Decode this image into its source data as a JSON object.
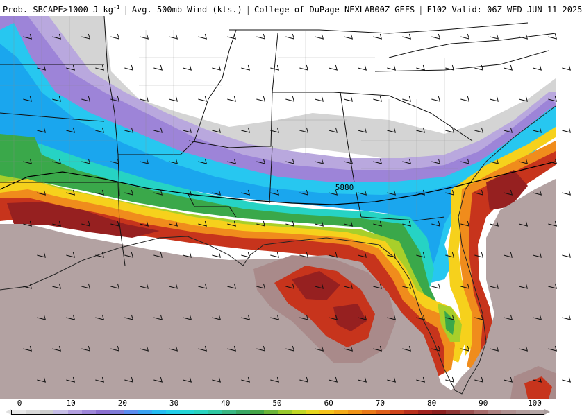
{
  "header": {
    "field_label": "Prob. SBCAPE>1000 J kg",
    "field_unit_sup": "-1",
    "wind_label": "Avg. 500mb Wind (kts.)",
    "source_label": "College of DuPage NEXLAB00Z GEFS",
    "valid_label": "F102 Valid: 06Z WED JUN 11 2025"
  },
  "map": {
    "contour_label": "5880",
    "colors": {
      "land_white": "#ffffff",
      "gray": "#d4d4d4",
      "lavender": "#b9a8de",
      "purple": "#9d84d8",
      "cyan": "#27c7f0",
      "blue": "#1aa6ee",
      "teal": "#26d3c4",
      "green": "#3aa84a",
      "yellow_green": "#a8cf2a",
      "yellow": "#f6d11c",
      "orange": "#f08c1c",
      "red": "#c7341c",
      "dark_red": "#962020",
      "mauve": "#a98a8a",
      "gulf": "#b3a2a2"
    }
  },
  "legend": {
    "labels": [
      "0",
      "10",
      "20",
      "30",
      "40",
      "50",
      "60",
      "70",
      "80",
      "90",
      "100"
    ],
    "colors": [
      "#e8e8e8",
      "#d9d9d9",
      "#cccccc",
      "#c6bde6",
      "#b39fe0",
      "#9e86d9",
      "#8b6fd0",
      "#7f7bd8",
      "#5c8cf0",
      "#3ba3f2",
      "#25bdf3",
      "#22cfea",
      "#24d6d6",
      "#2ad4c0",
      "#2fc9a2",
      "#3ab883",
      "#3aa864",
      "#44a547",
      "#6cb53a",
      "#98c92c",
      "#c1d826",
      "#e6d71f",
      "#f5c41c",
      "#f4ac1a",
      "#f09418",
      "#ea7a18",
      "#df5f1a",
      "#cf451c",
      "#b8301d",
      "#a0221f",
      "#8c1f1f",
      "#8e3434",
      "#9a5050",
      "#a66a6a",
      "#ad8080",
      "#b09090",
      "#b29c9c",
      "#b4a6a6"
    ]
  }
}
